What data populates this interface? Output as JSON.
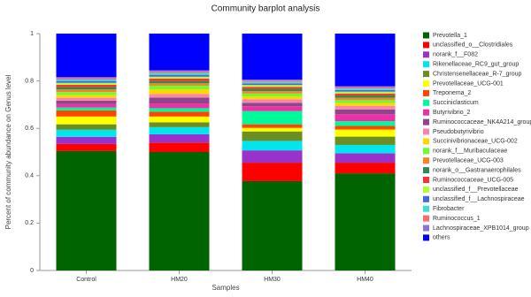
{
  "chart_data": {
    "type": "stacked_bar",
    "title": "Community barplot analysis",
    "x_label": "Samples",
    "y_label": "Percent of community abundance on Genus level",
    "categories": [
      "Control",
      "HM20",
      "HM30",
      "HM40"
    ],
    "ylim": [
      0,
      1
    ],
    "yticks": [
      0,
      0.2,
      0.4,
      0.6,
      0.8,
      1
    ],
    "series": [
      {
        "name": "Prevotella_1",
        "color": "#006400",
        "values": [
          0.504,
          0.5,
          0.377,
          0.41
        ]
      },
      {
        "name": "unclassified_o__Clostridiales",
        "color": "#ff0000",
        "values": [
          0.03,
          0.04,
          0.078,
          0.045
        ]
      },
      {
        "name": "norank_f__F082",
        "color": "#9932cc",
        "values": [
          0.03,
          0.035,
          0.052,
          0.04
        ]
      },
      {
        "name": "Rikenellaceae_RC9_gut_group",
        "color": "#00e5ee",
        "values": [
          0.03,
          0.03,
          0.04,
          0.035
        ]
      },
      {
        "name": "Christensenellaceae_R-7_group",
        "color": "#6b8e23",
        "values": [
          0.023,
          0.02,
          0.04,
          0.035
        ]
      },
      {
        "name": "Prevotellaceae_UCG-001",
        "color": "#ffff00",
        "values": [
          0.033,
          0.025,
          0.015,
          0.03
        ]
      },
      {
        "name": "Treponema_2",
        "color": "#ff4500",
        "values": [
          0.026,
          0.02,
          0.015,
          0.015
        ]
      },
      {
        "name": "Succiniclasticum",
        "color": "#00fa9a",
        "values": [
          0.012,
          0.015,
          0.056,
          0.02
        ]
      },
      {
        "name": "Butyrivibrio_2",
        "color": "#ee30a7",
        "values": [
          0.015,
          0.02,
          0.02,
          0.03
        ]
      },
      {
        "name": "Ruminococcaceae_NK4A214_group",
        "color": "#8b4789",
        "values": [
          0.014,
          0.025,
          0.015,
          0.02
        ]
      },
      {
        "name": "Pseudobutyrivibrio",
        "color": "#ff82ab",
        "values": [
          0.012,
          0.015,
          0.015,
          0.015
        ]
      },
      {
        "name": "Succinivibrionaceae_UCG-002",
        "color": "#ffd700",
        "values": [
          0.012,
          0.02,
          0.012,
          0.012
        ]
      },
      {
        "name": "norank_f__Muribaculaceae",
        "color": "#66ff33",
        "values": [
          0.012,
          0.015,
          0.012,
          0.012
        ]
      },
      {
        "name": "Prevotellaceae_UCG-003",
        "color": "#ff7f24",
        "values": [
          0.011,
          0.01,
          0.01,
          0.01
        ]
      },
      {
        "name": "norank_o__Gastranaerophilales",
        "color": "#2e8b57",
        "values": [
          0.01,
          0.01,
          0.01,
          0.01
        ]
      },
      {
        "name": "Ruminococcaceae_UCG-005",
        "color": "#ff3030",
        "values": [
          0.01,
          0.01,
          0.008,
          0.008
        ]
      },
      {
        "name": "unclassified_f__Prevotellaceae",
        "color": "#adff2f",
        "values": [
          0.008,
          0.008,
          0.008,
          0.008
        ]
      },
      {
        "name": "unclassified_f__Lachnospiraceae",
        "color": "#4169e1",
        "values": [
          0.008,
          0.008,
          0.007,
          0.007
        ]
      },
      {
        "name": "Fibrobacter",
        "color": "#40e0d0",
        "values": [
          0.006,
          0.008,
          0.006,
          0.006
        ]
      },
      {
        "name": "Ruminococcus_1",
        "color": "#ff6a6a",
        "values": [
          0.005,
          0.006,
          0.005,
          0.005
        ]
      },
      {
        "name": "Lachnospiraceae_XPB1014_group",
        "color": "#9370db",
        "values": [
          0.005,
          0.005,
          0.005,
          0.005
        ]
      },
      {
        "name": "others",
        "color": "#0000ff",
        "values": [
          0.184,
          0.155,
          0.194,
          0.222
        ]
      }
    ]
  }
}
